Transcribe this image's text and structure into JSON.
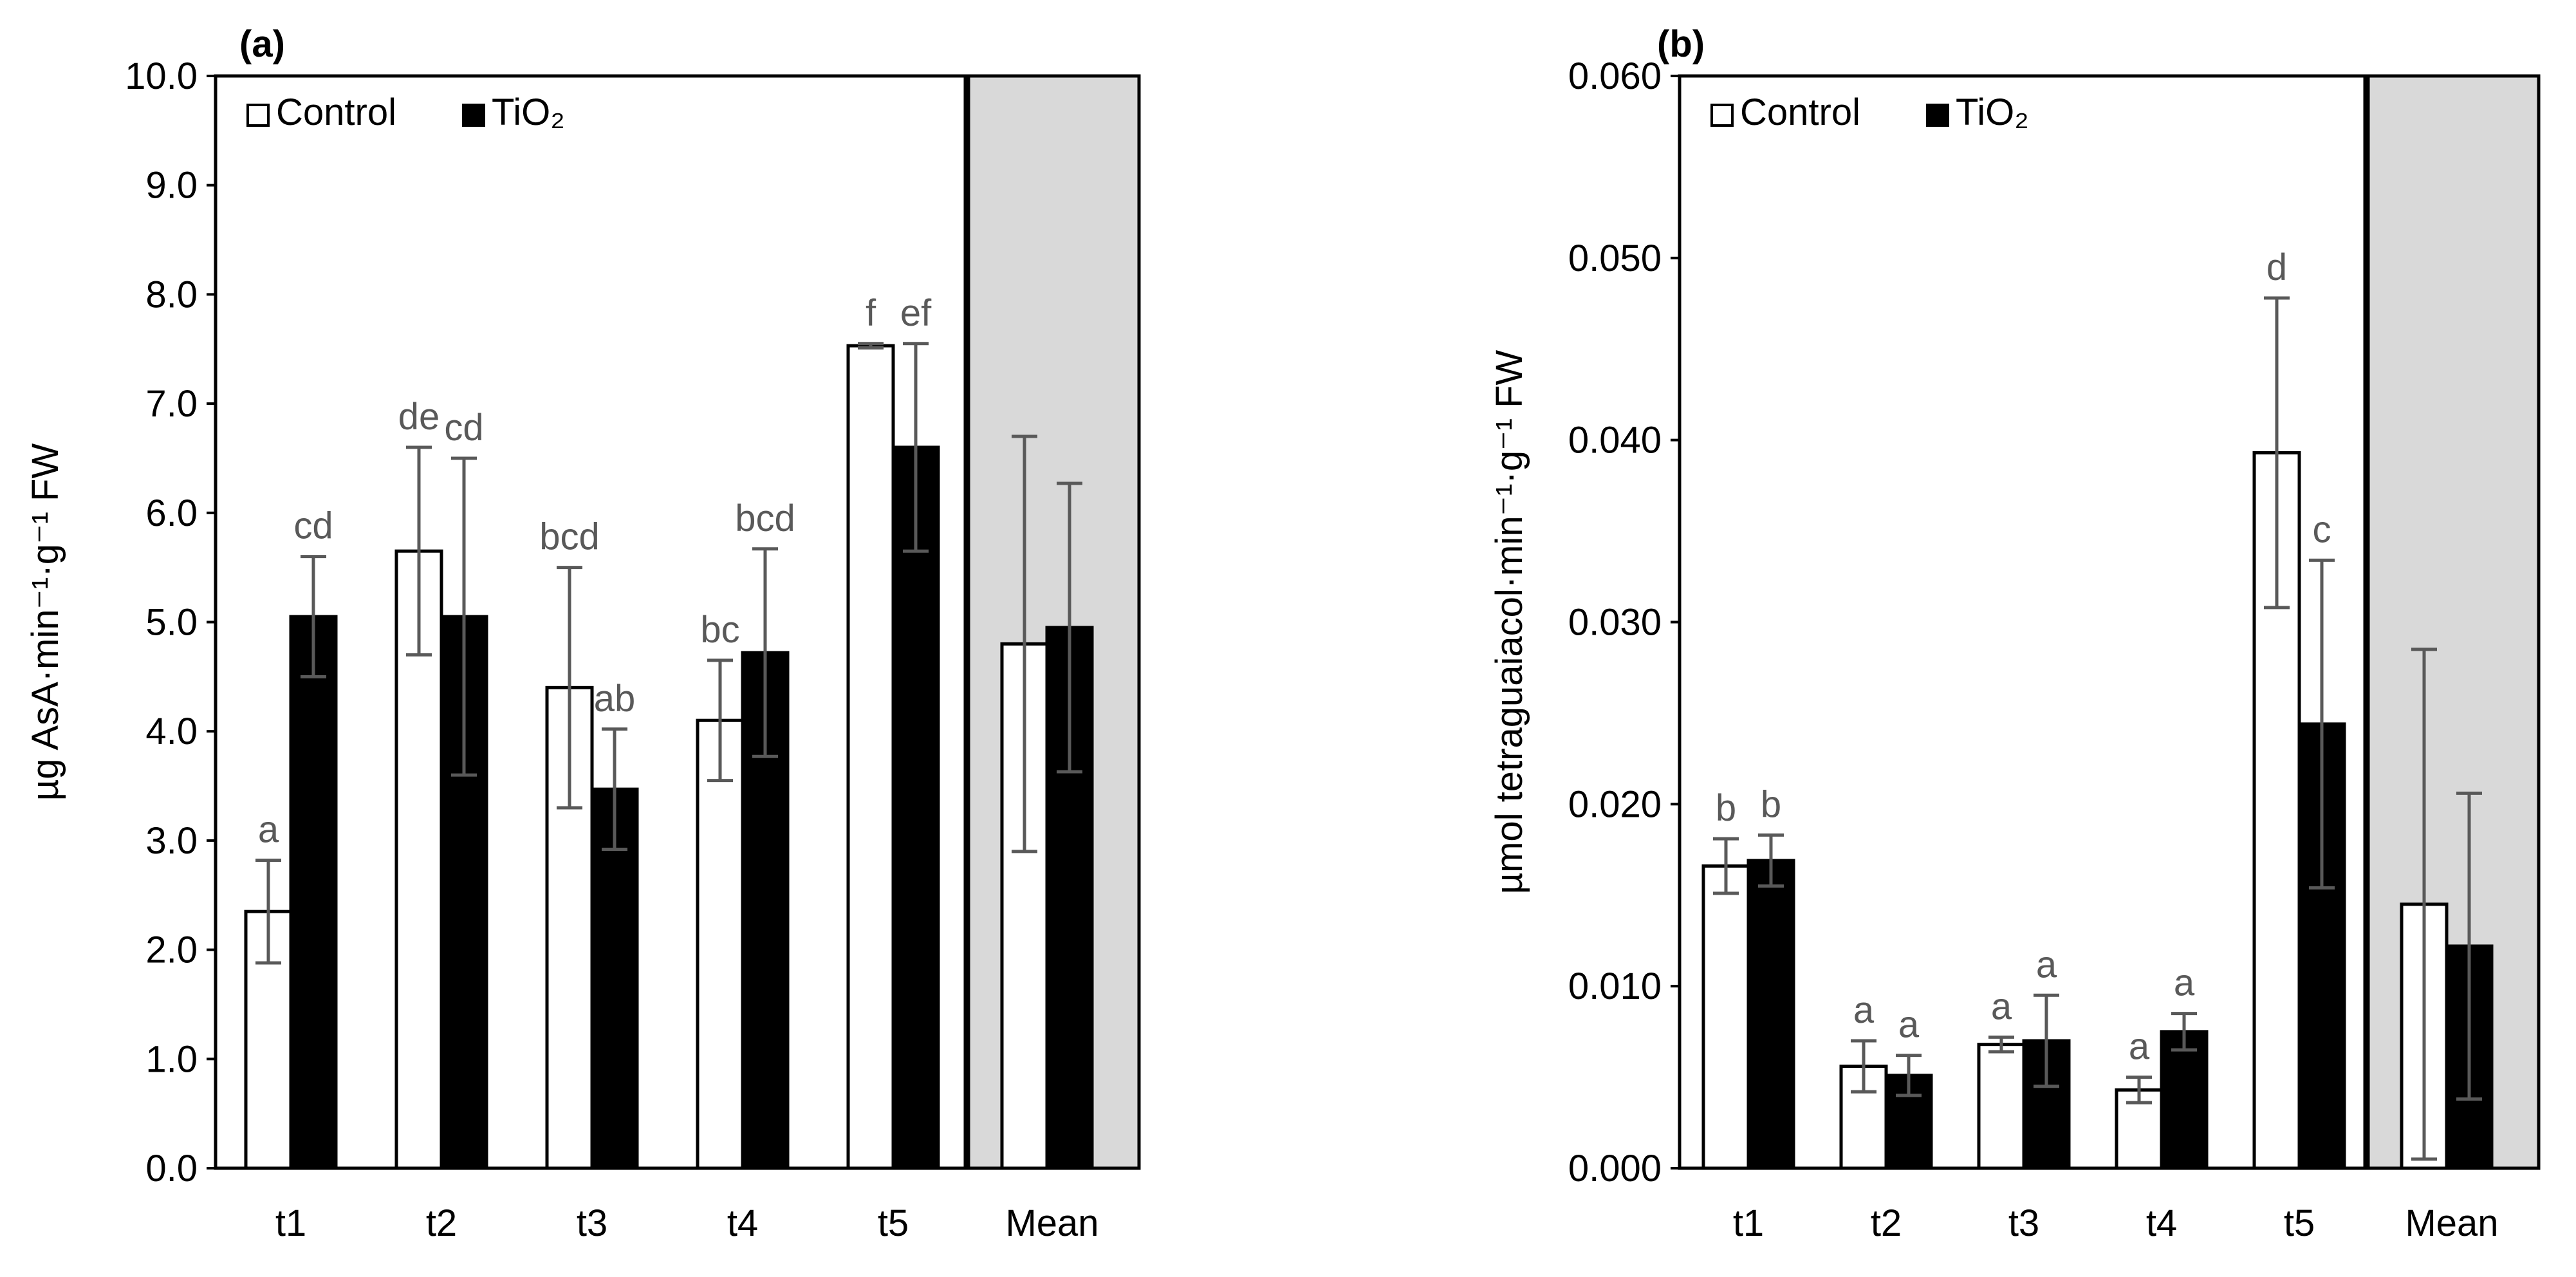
{
  "chart_data": [
    {
      "type": "bar",
      "panel_label": "(a)",
      "ylabel": "µg AsA·min⁻¹·g⁻¹ FW",
      "ylim": [
        0,
        10
      ],
      "ytick_step": 1,
      "ytick_decimals": 1,
      "categories": [
        "t1",
        "t2",
        "t3",
        "t4",
        "t5"
      ],
      "series": [
        {
          "name": "Control",
          "color": "#ffffff",
          "values": [
            2.35,
            5.65,
            4.4,
            4.1,
            7.53
          ],
          "errors": [
            0.47,
            0.95,
            1.1,
            0.55,
            0.02
          ],
          "letters": [
            "a",
            "de",
            "bcd",
            "bc",
            "f"
          ]
        },
        {
          "name": "TiO₂",
          "color": "#000000",
          "values": [
            5.05,
            5.05,
            3.47,
            4.72,
            6.6
          ],
          "errors": [
            0.55,
            1.45,
            0.55,
            0.95,
            0.95
          ],
          "letters": [
            "cd",
            "cd",
            "ab",
            "bcd",
            "ef"
          ]
        }
      ],
      "mean": {
        "label": "Mean",
        "background": "#d9d9d9",
        "values": [
          4.8,
          4.95
        ],
        "errors": [
          1.9,
          1.32
        ]
      },
      "legend": {
        "position": "top-left",
        "entries": [
          "Control",
          "TiO₂"
        ]
      }
    },
    {
      "type": "bar",
      "panel_label": "(b)",
      "ylabel": "µmol tetraguaiacol·min⁻¹·g⁻¹ FW",
      "ylim": [
        0,
        0.06
      ],
      "ytick_step": 0.01,
      "ytick_decimals": 3,
      "categories": [
        "t1",
        "t2",
        "t3",
        "t4",
        "t5"
      ],
      "series": [
        {
          "name": "Control",
          "color": "#ffffff",
          "values": [
            0.0166,
            0.0056,
            0.0068,
            0.0043,
            0.0393
          ],
          "errors": [
            0.0015,
            0.0014,
            0.0004,
            0.0007,
            0.0085
          ],
          "letters": [
            "b",
            "a",
            "a",
            "a",
            "d"
          ]
        },
        {
          "name": "TiO₂",
          "color": "#000000",
          "values": [
            0.0169,
            0.0051,
            0.007,
            0.0075,
            0.0244
          ],
          "errors": [
            0.0014,
            0.0011,
            0.0025,
            0.001,
            0.009
          ],
          "letters": [
            "b",
            "a",
            "a",
            "a",
            "c"
          ]
        }
      ],
      "mean": {
        "label": "Mean",
        "background": "#d9d9d9",
        "values": [
          0.0145,
          0.0122
        ],
        "errors": [
          0.014,
          0.0084
        ]
      },
      "legend": {
        "position": "top-left",
        "entries": [
          "Control",
          "TiO₂"
        ]
      }
    }
  ]
}
